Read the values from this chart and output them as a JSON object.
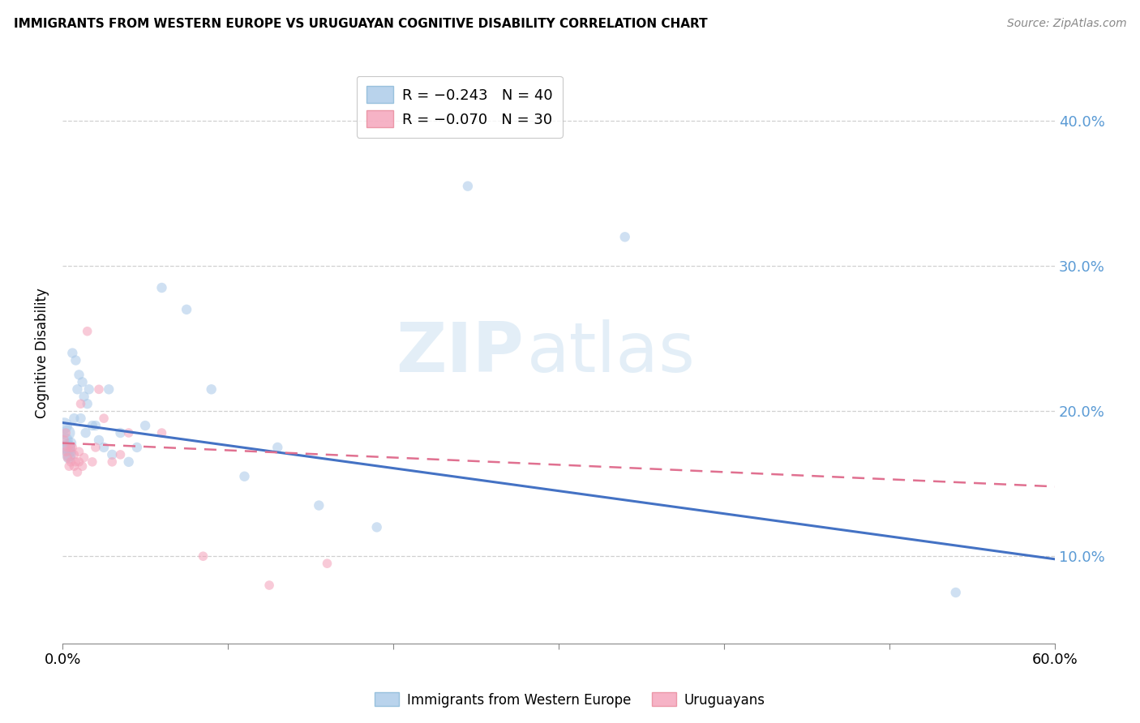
{
  "title": "IMMIGRANTS FROM WESTERN EUROPE VS URUGUAYAN COGNITIVE DISABILITY CORRELATION CHART",
  "source": "Source: ZipAtlas.com",
  "ylabel": "Cognitive Disability",
  "watermark_zip": "ZIP",
  "watermark_atlas": "atlas",
  "legend_stats": [
    {
      "label": "R = −0.243   N = 40",
      "color": "#a8c8e8"
    },
    {
      "label": "R = −0.070   N = 30",
      "color": "#f4a0b8"
    }
  ],
  "legend_labels": [
    "Immigrants from Western Europe",
    "Uruguayans"
  ],
  "xlim": [
    0.0,
    0.6
  ],
  "ylim": [
    0.04,
    0.44
  ],
  "yticks": [
    0.1,
    0.2,
    0.3,
    0.4
  ],
  "xticks": [
    0.0,
    0.1,
    0.2,
    0.3,
    0.4,
    0.5,
    0.6
  ],
  "blue_scatter_x": [
    0.001,
    0.002,
    0.002,
    0.003,
    0.003,
    0.004,
    0.004,
    0.005,
    0.005,
    0.006,
    0.007,
    0.008,
    0.009,
    0.01,
    0.011,
    0.012,
    0.013,
    0.014,
    0.015,
    0.016,
    0.018,
    0.02,
    0.022,
    0.025,
    0.028,
    0.03,
    0.035,
    0.04,
    0.045,
    0.05,
    0.06,
    0.075,
    0.09,
    0.11,
    0.13,
    0.155,
    0.19,
    0.245,
    0.34,
    0.54
  ],
  "blue_scatter_y": [
    0.19,
    0.18,
    0.175,
    0.185,
    0.175,
    0.17,
    0.168,
    0.178,
    0.172,
    0.24,
    0.195,
    0.235,
    0.215,
    0.225,
    0.195,
    0.22,
    0.21,
    0.185,
    0.205,
    0.215,
    0.19,
    0.19,
    0.18,
    0.175,
    0.215,
    0.17,
    0.185,
    0.165,
    0.175,
    0.19,
    0.285,
    0.27,
    0.215,
    0.155,
    0.175,
    0.135,
    0.12,
    0.355,
    0.32,
    0.075
  ],
  "blue_scatter_size": [
    200,
    150,
    120,
    180,
    200,
    150,
    120,
    100,
    80,
    80,
    80,
    80,
    80,
    80,
    80,
    80,
    80,
    80,
    80,
    80,
    80,
    80,
    80,
    80,
    80,
    80,
    80,
    80,
    80,
    80,
    80,
    80,
    80,
    80,
    80,
    80,
    80,
    80,
    80,
    80
  ],
  "pink_scatter_x": [
    0.001,
    0.002,
    0.002,
    0.003,
    0.003,
    0.004,
    0.005,
    0.005,
    0.006,
    0.007,
    0.007,
    0.008,
    0.009,
    0.01,
    0.01,
    0.011,
    0.012,
    0.013,
    0.015,
    0.018,
    0.02,
    0.022,
    0.025,
    0.03,
    0.035,
    0.04,
    0.06,
    0.085,
    0.125,
    0.16
  ],
  "pink_scatter_y": [
    0.18,
    0.185,
    0.172,
    0.175,
    0.168,
    0.162,
    0.175,
    0.165,
    0.175,
    0.17,
    0.162,
    0.165,
    0.158,
    0.165,
    0.172,
    0.205,
    0.162,
    0.168,
    0.255,
    0.165,
    0.175,
    0.215,
    0.195,
    0.165,
    0.17,
    0.185,
    0.185,
    0.1,
    0.08,
    0.095
  ],
  "blue_line_x": [
    0.0,
    0.6
  ],
  "blue_line_y": [
    0.192,
    0.098
  ],
  "pink_line_x": [
    0.0,
    0.6
  ],
  "pink_line_y": [
    0.178,
    0.148
  ],
  "scatter_alpha": 0.55,
  "blue_color": "#a8c8e8",
  "pink_color": "#f4a0b8",
  "line_blue": "#4472c4",
  "line_pink": "#e07090",
  "background_color": "#ffffff",
  "grid_color": "#d0d0d0",
  "tick_label_color": "#5b9bd5",
  "title_fontsize": 11,
  "source_fontsize": 10
}
